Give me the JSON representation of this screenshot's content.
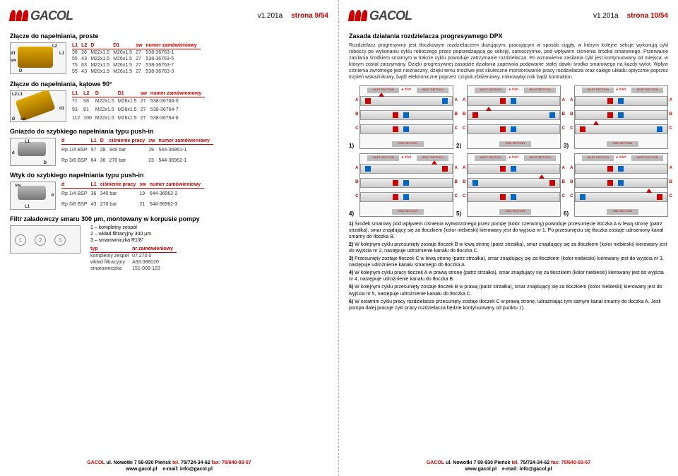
{
  "logo_text": "GACOL",
  "version": "v1.201a",
  "left": {
    "page_num": "strona 9/54",
    "sec1_title": "Złącze do napełniania, proste",
    "sec2_title": "Złącze do napełniania, kątowe 90°",
    "sec3_title": "Gniazdo do szybkiego napełniania typu push-in",
    "sec4_title": "Wtyk do szybkiego napełniania typu push-in",
    "sec5_title": "Filtr załadowczy smaru 300 μm, montowany w korpusie pompy",
    "t1_headers": [
      "L1",
      "L2",
      "D",
      "D1",
      "sw",
      "numer zamówieniowy"
    ],
    "t1_rows": [
      [
        "38",
        "26",
        "M22x1.5",
        "M26x1.5",
        "27",
        "538-36763-1"
      ],
      [
        "55",
        "43",
        "M22x1.5",
        "M26x1.5",
        "27",
        "538-36763-5"
      ],
      [
        "75",
        "63",
        "M22x1.5",
        "M26x1.5",
        "27",
        "538-36763-7"
      ],
      [
        "55",
        "43",
        "M20x1.5",
        "M26x1.5",
        "27",
        "538-36763-3"
      ]
    ],
    "t2_rows": [
      [
        "71",
        "58",
        "M22x1.5",
        "M26x1.5",
        "27",
        "538-36764-0"
      ],
      [
        "93",
        "81",
        "M22x1.5",
        "M26x1.5",
        "27",
        "538-36764-7"
      ],
      [
        "112",
        "100",
        "M22x1.5",
        "M26x1.5",
        "27",
        "538-36764-8"
      ]
    ],
    "t3_headers": [
      "d",
      "L1",
      "D",
      "ciśnienie pracy",
      "sw",
      "numer zamówieniowy"
    ],
    "t3_rows": [
      [
        "Rp 1/4 BSP",
        "57",
        "28",
        "340 bar",
        "19",
        "544-36961-1"
      ],
      [
        "Rp 3/8 BSP",
        "64",
        "36",
        "270 bar",
        "23",
        "544-36962-1"
      ]
    ],
    "t4_headers": [
      "d",
      "L1",
      "ciśnienie pracy",
      "sw",
      "numer zamówieniowy"
    ],
    "t4_rows": [
      [
        "Rp 1/4 BSP",
        "36",
        "340 bar",
        "19",
        "544-36962-2"
      ],
      [
        "Rp 3/8 BSP",
        "43",
        "270 bar",
        "21",
        "544-36962-3"
      ]
    ],
    "filter_items": [
      "1 – kompletny zespół",
      "2 – wkład filtracyjny 300 μm",
      "3 – smarowniczka R1/8\""
    ],
    "t5_headers": [
      "typ",
      "nr zamówieniowy"
    ],
    "t5_rows": [
      [
        "kompletny zespół",
        "07.270.0"
      ],
      [
        "wkład filtracyjny",
        "A93.086020"
      ],
      [
        "smarowniczka",
        "151-008-123"
      ]
    ]
  },
  "right": {
    "page_num": "strona 10/54",
    "sec_title": "Zasada działania rozdzielacza progresywnego DPX",
    "body": "Rozdzielacz progresywny jest tłoczkowym rozdzielaczem dozującym, pracującym w sposób ciągły, w którym kolejne sekcje wykonują cykl roboczy po wykonaniu cyklu roboczego przez poprzedzającą go sekcję, samoczynnie, pod wpływem ciśnienia środka smarowego. Przerwanie zasilania środkiem smarnym w trakcie cyklu powoduje zatrzymanie rozdzielacza. Po wznowieniu zasilania cykl jest kontynuowany od miejsca, w którym został zatrzymany. Dzięki progresywnej zasadzie działania zapewnia podawanie stałej dawki środka smarowego na każdy wylot. Wpływ ciśnienia zwrotnego jest nieznaczny, dzięki temu możliwe jest skuteczne monitorowanie pracy rozdzielacza oraz całego układu optycznie poprzez trzpień wskaźnikowy, bądź elektroniczne poprzez czujnik zbliżeniowy, mikrowyłącznik bądź kontrakton.",
    "list": [
      "Środek smarowy pod wpływem ciśnienia wytworzonego przez pompę (kolor czerwony) powoduje przesunięcie tłoczka A w lewą stronę (patrz strzałka), smar znajdujący się za tłoczkiem (kolor niebieski) kierowany jest do wyjścia nr 1. Po przesunięciu się tłoczka zostaje udrożniony kanał smarny do tłoczka B.",
      "W kolejnym cyklu przesunięty zostaje tłoczek B w lewą stronę (patrz strzałka), smar znajdujący się za tłoczkiem (kolor niebieski) kierowany jest do wyjścia nr 2, następuje udrożnienie kanału do tłoczka C.",
      "Przesunięty zostaje tłoczek C w lewą stronę (patrz strzałka), smar znajdujący się za tłoczkiem (kolor niebieski) kierowany jest do wyjścia nr 3, następuje udrożnienie kanału smarnego do tłoczka A.",
      "W kolejnym cyklu pracy tłoczek A w prawą stronę (patrz strzałka), smar znajdujący się za tłoczkiem (kolor niebieski) kierowany jest do wyjścia nr 4, następuje udrożnienie kanału do tłoczka B.",
      "W kolejnym cyklu przesunięty zostaje tłoczek B w prawą (patrz strzałka), smar znajdujący się za tłoczkiem (kolor niebieski) kierowany jest do wyjścia nr 5, następuje udrożnienie kanału do tłoczka C.",
      "W ostatnim cyklu pracy rozdzielacza przesunięty zostaje tłoczek C w prawą stronę, udrażniając tym samym kanał smarny do tłoczka A. Jeśli pompa dalej pracuje cykl pracy rozdzielacza będzie kontynuowany od punktu 1)."
    ]
  },
  "footer": {
    "company": "GACOL",
    "addr": "ul. Nowotki 7   59-930 Pieńsk",
    "tel_label": "tel.",
    "tel": "75/724-34-62",
    "fax_label": "fax:",
    "fax": "75/640-93-57",
    "web": "www.gacol.pl",
    "email_label": "e-mail:",
    "email": "info@gacol.pl"
  },
  "dlabels": {
    "d1": "d1",
    "L1": "L1",
    "L2": "L2",
    "sw": "sw",
    "D": "D",
    "d": "d"
  },
  "inlet": "Inlet",
  "inlet_section": "INLET SECTION",
  "end_section": "END SECTION"
}
